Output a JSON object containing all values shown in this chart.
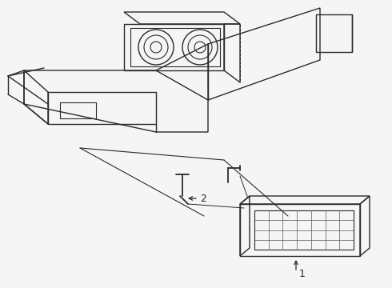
{
  "background_color": "#f5f5f5",
  "line_color": "#2a2a2a",
  "line_width": 1.0,
  "label1": "1",
  "label2": "2",
  "fig_width": 4.9,
  "fig_height": 3.6,
  "dpi": 100
}
